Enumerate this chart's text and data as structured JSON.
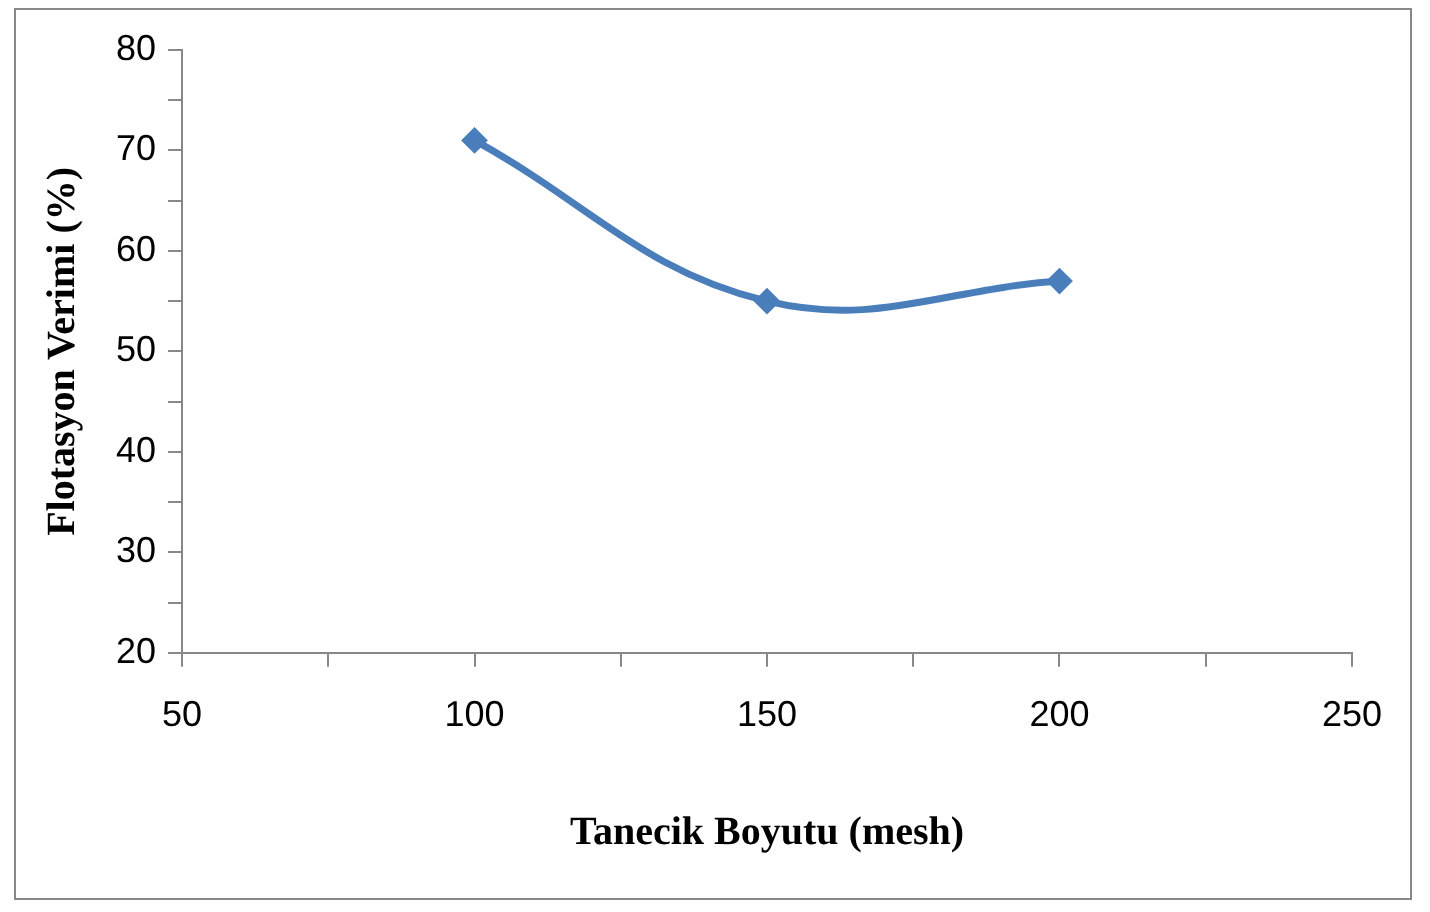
{
  "chart_data": {
    "type": "line",
    "xlabel": "Tanecik Boyutu (mesh)",
    "ylabel": "Flotasyon Verimi (%)",
    "x": [
      100,
      150,
      200
    ],
    "series": [
      {
        "color": "#4a7ebb",
        "values": [
          71,
          55,
          57
        ]
      }
    ],
    "xlim": [
      50,
      250
    ],
    "xticks": [
      50,
      {
        "value": 75,
        "label": null
      },
      100,
      {
        "value": 125,
        "label": null
      },
      150,
      {
        "value": 175,
        "label": null
      },
      200,
      {
        "value": 225,
        "label": null
      },
      250
    ],
    "ylim": [
      20,
      80
    ],
    "yticks": [
      20,
      {
        "value": 25,
        "label": null
      },
      30,
      {
        "value": 35,
        "label": null
      },
      40,
      {
        "value": 45,
        "label": null
      },
      50,
      {
        "value": 55,
        "label": null
      },
      60,
      {
        "value": 65,
        "label": null
      },
      70,
      {
        "value": 75,
        "label": null
      },
      80
    ],
    "grid": false,
    "legend": false,
    "marker": "diamond",
    "line_style": "solid"
  }
}
